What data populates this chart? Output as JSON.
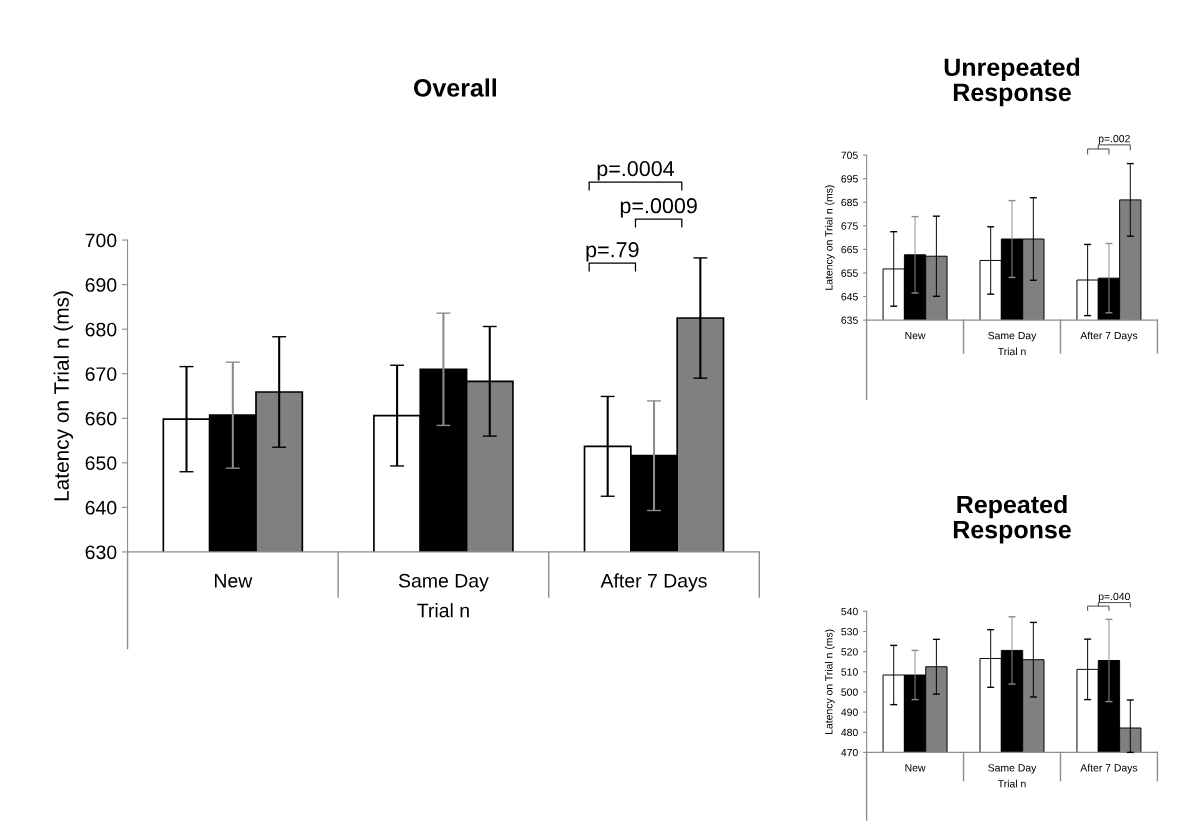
{
  "chart_data": [
    {
      "type": "bar",
      "title": "Overall",
      "xlabel": "Trial n",
      "ylabel": "Latency on Trial n (ms)",
      "categories": [
        "New",
        "Same Day",
        "After 7 Days"
      ],
      "series": [
        {
          "color": "#ffffff",
          "values": [
            659.8,
            660.6,
            653.7
          ],
          "errors": [
            11.8,
            11.3,
            11.2
          ]
        },
        {
          "color": "#000000",
          "values": [
            660.7,
            671.0,
            651.6
          ],
          "errors": [
            11.9,
            12.6,
            12.3
          ]
        },
        {
          "color": "#808080",
          "values": [
            665.9,
            668.3,
            682.5
          ],
          "errors": [
            12.4,
            12.3,
            13.5
          ]
        }
      ],
      "ylim": [
        630,
        700
      ],
      "yticks": [
        630,
        640,
        650,
        660,
        670,
        680,
        690,
        700
      ],
      "grid": false,
      "legend": false,
      "annotations": [
        "p=.79",
        "p=.0009",
        "p=.0004"
      ]
    },
    {
      "type": "bar",
      "title": "Unrepeated\nResponse",
      "xlabel": "Trial n",
      "ylabel": "Latency on Trial n (ms)",
      "categories": [
        "New",
        "Same Day",
        "After 7 Days"
      ],
      "series": [
        {
          "color": "#ffffff",
          "values": [
            656.7,
            660.3,
            652.0
          ],
          "errors": [
            15.8,
            14.3,
            15.1
          ]
        },
        {
          "color": "#000000",
          "values": [
            662.7,
            669.4,
            652.8
          ],
          "errors": [
            16.2,
            16.3,
            14.7
          ]
        },
        {
          "color": "#808080",
          "values": [
            662.1,
            669.4,
            686.0
          ],
          "errors": [
            17.0,
            17.5,
            15.4
          ]
        }
      ],
      "ylim": [
        635,
        705
      ],
      "yticks": [
        635,
        645,
        655,
        665,
        675,
        685,
        695,
        705
      ],
      "grid": false,
      "legend": false,
      "annotations": [
        "p=.002"
      ]
    },
    {
      "type": "bar",
      "title": "Repeated\nResponse",
      "xlabel": "Trial n",
      "ylabel": "Latency on Trial n (ms)",
      "categories": [
        "New",
        "Same Day",
        "After 7 Days"
      ],
      "series": [
        {
          "color": "#ffffff",
          "values": [
            508.4,
            516.6,
            511.2
          ],
          "errors": [
            14.7,
            14.3,
            15.0
          ]
        },
        {
          "color": "#000000",
          "values": [
            508.4,
            520.6,
            515.6
          ],
          "errors": [
            12.2,
            16.7,
            20.4
          ]
        },
        {
          "color": "#808080",
          "values": [
            512.5,
            516.0,
            482.1
          ],
          "errors": [
            13.6,
            18.5,
            [
              470,
              496.0
            ]
          ]
        }
      ],
      "ylim": [
        470,
        540
      ],
      "yticks": [
        470,
        480,
        490,
        500,
        510,
        520,
        530,
        540
      ],
      "grid": false,
      "legend": false,
      "annotations": [
        "p=.040"
      ]
    }
  ]
}
